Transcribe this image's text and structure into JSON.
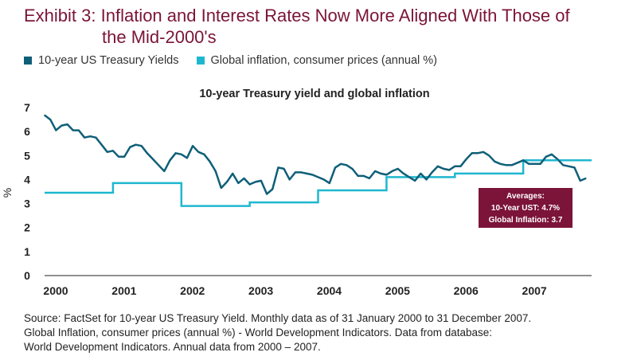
{
  "title_line1": "Exhibit 3: Inflation and Interest Rates Now More Aligned With Those of",
  "title_line2": "the Mid-2000's",
  "colors": {
    "title": "#7b1438",
    "treasury": "#0f5f78",
    "inflation": "#1fb7cf",
    "callout_bg": "#7b1438"
  },
  "legend": [
    {
      "label": "10-year US Treasury Yields",
      "color": "#0f5f78"
    },
    {
      "label": "Global inflation, consumer prices (annual %)",
      "color": "#1fb7cf"
    }
  ],
  "callout": {
    "line1": "Averages:",
    "line2": "10-Year UST: 4.7%",
    "line3": "Global Inflation: 3.7"
  },
  "source": [
    "Source: FactSet for 10-year US Treasury Yield. Monthly data as of 31 January 2000 to 31 December 2007.",
    "Global Inflation, consumer prices (annual %) - World Development Indicators. Data from database:",
    "World Development Indicators. Annual data from 2000 – 2007."
  ],
  "chart_data": {
    "type": "line",
    "title": "10-year Treasury yield and global inflation",
    "ylabel": "%",
    "xlabel": "",
    "ylim": [
      0,
      7
    ],
    "yticks": [
      0,
      1,
      2,
      3,
      4,
      5,
      6,
      7
    ],
    "xlim": [
      2000,
      2008
    ],
    "xticks": [
      "2000",
      "2001",
      "2002",
      "2003",
      "2004",
      "2005",
      "2006",
      "2007"
    ],
    "grid": false,
    "legend_position": "top-left",
    "series": [
      {
        "name": "10-year US Treasury Yields",
        "x_start": 2000,
        "frequency": "monthly",
        "values": [
          6.68,
          6.5,
          6.05,
          6.25,
          6.3,
          6.05,
          6.05,
          5.75,
          5.8,
          5.75,
          5.45,
          5.15,
          5.2,
          4.95,
          4.95,
          5.35,
          5.45,
          5.4,
          5.1,
          4.85,
          4.6,
          4.35,
          4.8,
          5.1,
          5.05,
          4.9,
          5.4,
          5.15,
          5.05,
          4.75,
          4.35,
          3.65,
          3.9,
          4.25,
          3.85,
          4.05,
          3.8,
          3.9,
          3.95,
          3.4,
          3.6,
          4.5,
          4.45,
          4.0,
          4.3,
          4.3,
          4.25,
          4.2,
          4.1,
          4.0,
          3.85,
          4.5,
          4.65,
          4.6,
          4.45,
          4.15,
          4.15,
          4.05,
          4.35,
          4.25,
          4.2,
          4.35,
          4.45,
          4.25,
          4.1,
          3.95,
          4.25,
          4.0,
          4.3,
          4.55,
          4.45,
          4.4,
          4.55,
          4.55,
          4.85,
          5.1,
          5.1,
          5.15,
          5.0,
          4.75,
          4.65,
          4.6,
          4.6,
          4.7,
          4.8,
          4.65,
          4.65,
          4.65,
          4.95,
          5.05,
          4.85,
          4.6,
          4.55,
          4.5,
          3.95,
          4.05
        ]
      },
      {
        "name": "Global inflation, consumer prices (annual %)",
        "x": [
          2000,
          2001,
          2002,
          2003,
          2004,
          2005,
          2006,
          2007
        ],
        "values": [
          3.45,
          3.85,
          2.9,
          3.05,
          3.55,
          4.1,
          4.25,
          4.8
        ],
        "step": true
      }
    ]
  }
}
